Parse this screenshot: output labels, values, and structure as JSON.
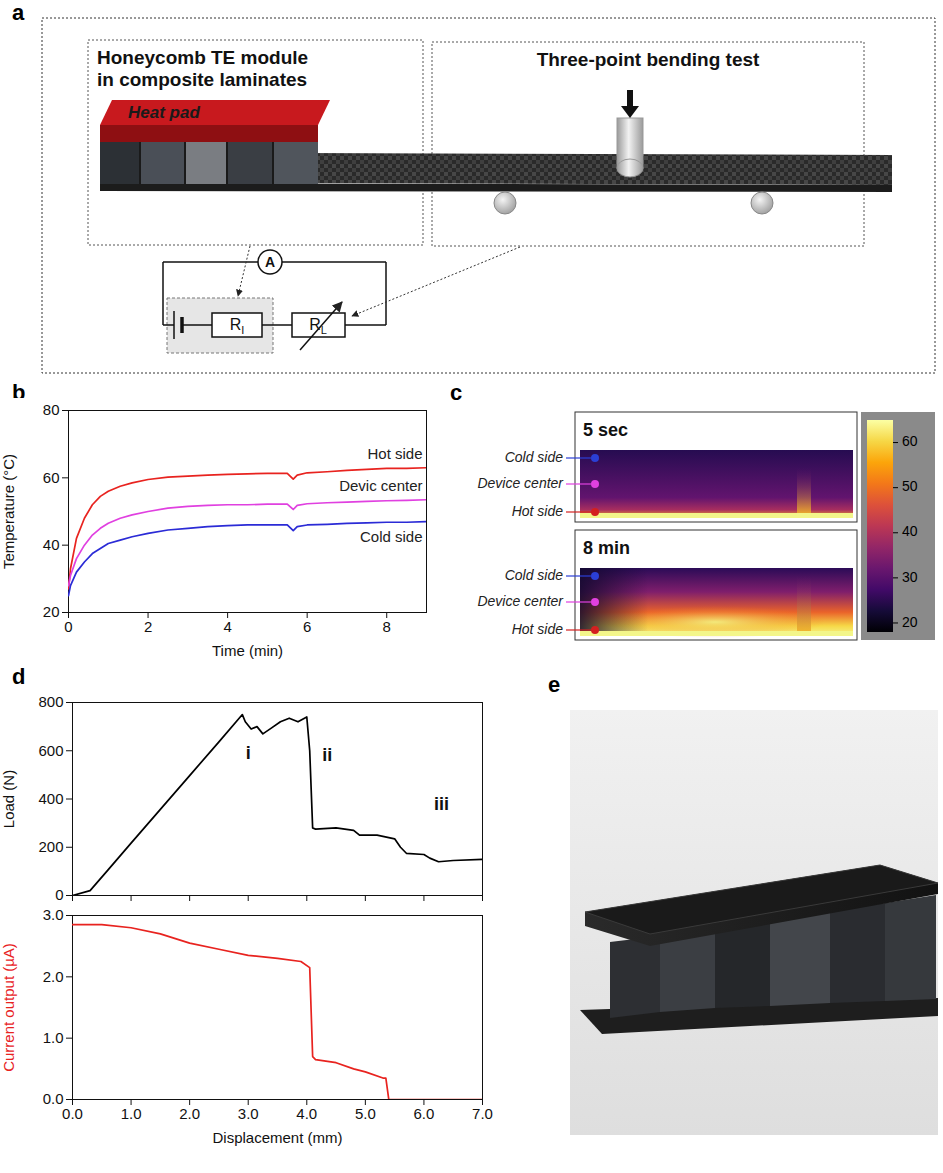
{
  "panels": [
    "a",
    "b",
    "c",
    "d",
    "e"
  ],
  "diagram": {
    "module_title": "Honeycomb TE module in composite laminates",
    "heat_pad": "Heat pad",
    "test_title": "Three-point bending test",
    "ammeter": "A",
    "internal_resistor": {
      "symbol": "R",
      "subscript": "I"
    },
    "load_resistor": {
      "symbol": "R",
      "subscript": "L"
    }
  },
  "chart_data": [
    {
      "type": "line",
      "xlabel": "Time (min)",
      "ylabel": "Temperature (°C)",
      "xlim": [
        0,
        9
      ],
      "xticks": [
        0,
        2,
        4,
        6,
        8
      ],
      "ylim": [
        20,
        80
      ],
      "yticks": [
        20,
        40,
        60,
        80
      ],
      "x": [
        0,
        0.05,
        0.2,
        0.4,
        0.6,
        0.8,
        1,
        1.3,
        1.6,
        2,
        2.5,
        3,
        3.5,
        4,
        4.5,
        5,
        5.5,
        5.65,
        5.75,
        6,
        6.5,
        7,
        7.5,
        8,
        8.5,
        9
      ],
      "series": [
        {
          "name": "Hot side",
          "color": "#e8231f",
          "values": [
            27,
            33,
            42,
            48,
            52,
            54.5,
            56,
            57.5,
            58.5,
            59.5,
            60.2,
            60.5,
            60.8,
            61,
            61.2,
            61.3,
            61.3,
            59.6,
            60.8,
            61.5,
            61.8,
            62.2,
            62.5,
            62.8,
            62.8,
            63
          ]
        },
        {
          "name": "Devic center",
          "color": "#e040e0",
          "values": [
            28,
            31,
            36,
            40,
            43,
            45,
            46.5,
            48,
            49,
            50,
            51,
            51.5,
            51.8,
            52,
            52,
            52.2,
            52.2,
            50.6,
            51.8,
            52.3,
            52.6,
            52.8,
            53,
            53.2,
            53.3,
            53.5
          ]
        },
        {
          "name": "Cold side",
          "color": "#2b2bd6",
          "values": [
            25,
            28,
            32,
            35,
            37.5,
            39,
            40.5,
            41.5,
            42.5,
            43.5,
            44.5,
            45,
            45.5,
            45.8,
            46,
            46,
            46,
            44.3,
            45.5,
            46,
            46.2,
            46.5,
            46.6,
            46.8,
            46.8,
            47
          ]
        }
      ]
    },
    {
      "type": "line",
      "ylabel": "Load (N)",
      "tick_labels": "y",
      "xlim": [
        0,
        7
      ],
      "xticks": [
        0,
        1,
        2,
        3,
        4,
        5,
        6,
        7
      ],
      "ylim": [
        0,
        800
      ],
      "yticks": [
        0,
        200,
        400,
        600,
        800
      ],
      "x": [
        0,
        0.3,
        0.6,
        1,
        1.5,
        2,
        2.5,
        2.9,
        2.95,
        3.05,
        3.15,
        3.25,
        3.4,
        3.55,
        3.7,
        3.85,
        4.0,
        4.05,
        4.1,
        4.15,
        4.5,
        4.8,
        4.9,
        5.2,
        5.5,
        5.6,
        5.7,
        6.0,
        6.1,
        6.25,
        6.5,
        7.0
      ],
      "series": [
        {
          "color": "#000000",
          "values": [
            0,
            20,
            104,
            217,
            357,
            497,
            637,
            750,
            720,
            690,
            700,
            670,
            695,
            720,
            735,
            720,
            740,
            600,
            280,
            275,
            280,
            270,
            250,
            250,
            235,
            200,
            175,
            170,
            155,
            140,
            145,
            150
          ]
        }
      ],
      "annotations": [
        {
          "text": "i",
          "x": 3.0,
          "y": 590
        },
        {
          "text": "ii",
          "x": 4.35,
          "y": 580
        },
        {
          "text": "iii",
          "x": 6.3,
          "y": 380
        }
      ]
    },
    {
      "type": "line",
      "xlabel": "Displacement (mm)",
      "ylabel": "Current output (µA)",
      "xlim": [
        0,
        7
      ],
      "xticks": [
        0,
        1,
        2,
        3,
        4,
        5,
        6,
        7
      ],
      "ylim": [
        0,
        3
      ],
      "yticks": [
        0,
        1,
        2,
        3
      ],
      "x": [
        0,
        0.5,
        1,
        1.5,
        2,
        2.5,
        3,
        3.5,
        3.9,
        4.05,
        4.1,
        4.15,
        4.5,
        4.8,
        5.0,
        5.3,
        5.35,
        5.4,
        7
      ],
      "series": [
        {
          "color": "#e8231f",
          "values": [
            2.85,
            2.85,
            2.8,
            2.7,
            2.55,
            2.45,
            2.35,
            2.3,
            2.25,
            2.15,
            0.7,
            0.65,
            0.6,
            0.5,
            0.45,
            0.35,
            0.35,
            0,
            0
          ]
        }
      ]
    }
  ],
  "thermal": {
    "frames": [
      {
        "time": "5 sec"
      },
      {
        "time": "8 min"
      }
    ],
    "labels": [
      "Cold side",
      "Device center",
      "Hot side"
    ],
    "colorbar": {
      "range": [
        18,
        65
      ],
      "ticks": [
        20,
        30,
        40,
        50,
        60
      ]
    }
  }
}
